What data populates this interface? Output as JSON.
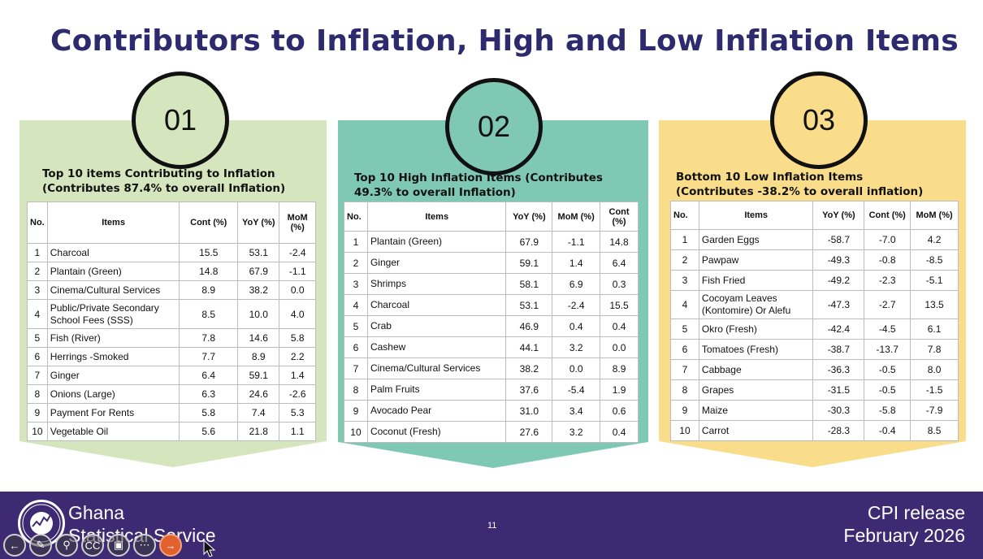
{
  "title": "Contributors to Inflation, High and Low Inflation Items",
  "panels": [
    {
      "number": "01",
      "color": "#d5e6bf",
      "heading_line1": "Top 10 items Contributing to Inflation",
      "heading_line2": "(Contributes 87.4% to overall Inflation)",
      "columns": [
        "No.",
        "Items",
        "Cont (%)",
        "YoY (%)",
        "MoM (%)"
      ],
      "rows": [
        [
          "1",
          "Charcoal",
          "15.5",
          "53.1",
          "-2.4"
        ],
        [
          "2",
          "Plantain (Green)",
          "14.8",
          "67.9",
          "-1.1"
        ],
        [
          "3",
          "Cinema/Cultural Services",
          "8.9",
          "38.2",
          "0.0"
        ],
        [
          "4",
          "Public/Private Secondary School Fees (SSS)",
          "8.5",
          "10.0",
          "4.0"
        ],
        [
          "5",
          "Fish (River)",
          "7.8",
          "14.6",
          "5.8"
        ],
        [
          "6",
          "Herrings -Smoked",
          "7.7",
          "8.9",
          "2.2"
        ],
        [
          "7",
          "Ginger",
          "6.4",
          "59.1",
          "1.4"
        ],
        [
          "8",
          "Onions (Large)",
          "6.3",
          "24.6",
          "-2.6"
        ],
        [
          "9",
          "Payment For Rents",
          "5.8",
          "7.4",
          "5.3"
        ],
        [
          "10",
          "Vegetable Oil",
          "5.6",
          "21.8",
          "1.1"
        ]
      ]
    },
    {
      "number": "02",
      "color": "#7fc8b4",
      "heading_line1": "Top 10 High Inflation Items (Contributes",
      "heading_line2": "49.3% to overall Inflation)",
      "columns": [
        "No.",
        "Items",
        "YoY (%)",
        "MoM (%)",
        "Cont (%)"
      ],
      "rows": [
        [
          "1",
          "Plantain (Green)",
          "67.9",
          "-1.1",
          "14.8"
        ],
        [
          "2",
          "Ginger",
          "59.1",
          "1.4",
          "6.4"
        ],
        [
          "3",
          "Shrimps",
          "58.1",
          "6.9",
          "0.3"
        ],
        [
          "4",
          "Charcoal",
          "53.1",
          "-2.4",
          "15.5"
        ],
        [
          "5",
          "Crab",
          "46.9",
          "0.4",
          "0.4"
        ],
        [
          "6",
          "Cashew",
          "44.1",
          "3.2",
          "0.0"
        ],
        [
          "7",
          "Cinema/Cultural Services",
          "38.2",
          "0.0",
          "8.9"
        ],
        [
          "8",
          "Palm Fruits",
          "37.6",
          "-5.4",
          "1.9"
        ],
        [
          "9",
          "Avocado Pear",
          "31.0",
          "3.4",
          "0.6"
        ],
        [
          "10",
          "Coconut (Fresh)",
          "27.6",
          "3.2",
          "0.4"
        ]
      ]
    },
    {
      "number": "03",
      "color": "#f9dd8a",
      "heading_line1": "Bottom 10 Low Inflation Items",
      "heading_line2": "(Contributes -38.2% to overall inflation)",
      "columns": [
        "No.",
        "Items",
        "YoY (%)",
        "Cont (%)",
        "MoM (%)"
      ],
      "rows": [
        [
          "1",
          "Garden Eggs",
          "-58.7",
          "-7.0",
          "4.2"
        ],
        [
          "2",
          "Pawpaw",
          "-49.3",
          "-0.8",
          "-8.5"
        ],
        [
          "3",
          "Fish Fried",
          "-49.2",
          "-2.3",
          "-5.1"
        ],
        [
          "4",
          "Cocoyam Leaves (Kontomire) Or Alefu",
          "-47.3",
          "-2.7",
          "13.5"
        ],
        [
          "5",
          "Okro (Fresh)",
          "-42.4",
          "-4.5",
          "6.1"
        ],
        [
          "6",
          "Tomatoes (Fresh)",
          "-38.7",
          "-13.7",
          "7.8"
        ],
        [
          "7",
          "Cabbage",
          "-36.3",
          "-0.5",
          "8.0"
        ],
        [
          "8",
          "Grapes",
          "-31.5",
          "-0.5",
          "-1.5"
        ],
        [
          "9",
          "Maize",
          "-30.3",
          "-5.8",
          "-7.9"
        ],
        [
          "10",
          "Carrot",
          "-28.3",
          "-0.4",
          "8.5"
        ]
      ]
    }
  ],
  "footer": {
    "org_line1": "Ghana",
    "org_line2": "Statistical Service",
    "logo_text": "STATISTICAL SERVICE · GHANA",
    "page_number": "11",
    "release_line1": "CPI release",
    "release_line2": "February 2026",
    "bg_color": "#3d2a73"
  },
  "toolbar": {
    "buttons": [
      {
        "name": "previous-slide-button",
        "icon": "arrow-left-icon",
        "glyph": "←"
      },
      {
        "name": "pen-tool-button",
        "icon": "pen-icon",
        "glyph": "✎"
      },
      {
        "name": "zoom-button",
        "icon": "magnifier-icon",
        "glyph": "⚲"
      },
      {
        "name": "captions-button",
        "icon": "cc-icon",
        "glyph": "CC"
      },
      {
        "name": "camera-button",
        "icon": "video-camera-icon",
        "glyph": "▣"
      },
      {
        "name": "more-options-button",
        "icon": "more-icon",
        "glyph": "⋯"
      },
      {
        "name": "next-slide-button",
        "icon": "arrow-right-icon",
        "glyph": "→"
      }
    ]
  }
}
